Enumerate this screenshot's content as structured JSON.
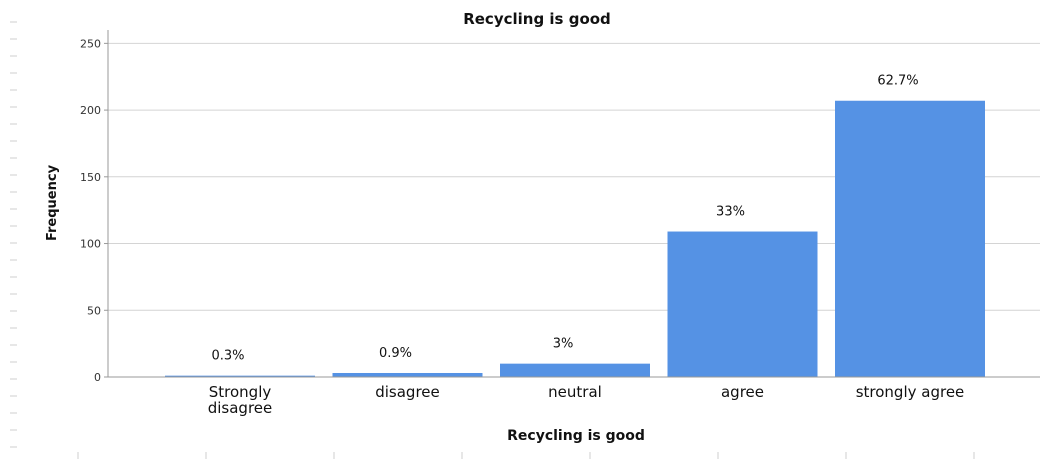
{
  "chart_data": {
    "type": "bar",
    "title": "Recycling is good",
    "xlabel": "Recycling is good",
    "ylabel": "Frequency",
    "categories": [
      "Strongly disagree",
      "disagree",
      "neutral",
      "agree",
      "strongly agree"
    ],
    "category_lines": [
      [
        "Strongly",
        "disagree"
      ],
      [
        "disagree"
      ],
      [
        "neutral"
      ],
      [
        "agree"
      ],
      [
        "strongly agree"
      ]
    ],
    "values": [
      1,
      3,
      10,
      109,
      207
    ],
    "data_labels": [
      "0.3%",
      "0.9%",
      "3%",
      "33%",
      "62.7%"
    ],
    "ylim": [
      0,
      260
    ],
    "yticks": [
      0,
      50,
      100,
      150,
      200,
      250
    ],
    "grid": true,
    "bar_color": "#5592e4",
    "grid_color": "#d4d4d4",
    "axis_color": "#999999"
  }
}
